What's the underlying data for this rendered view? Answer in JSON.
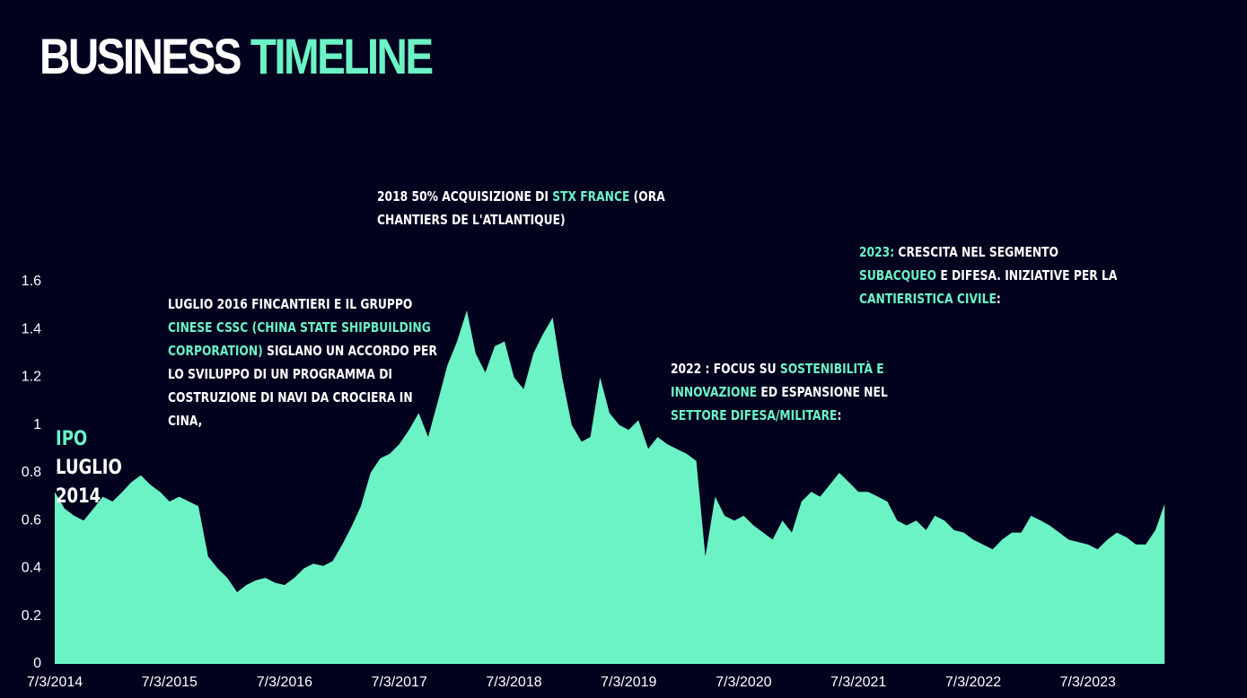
{
  "title": [
    {
      "text": "BUSINESS",
      "accent": false
    },
    {
      "text": "TIMELINE",
      "accent": true
    }
  ],
  "annotations": [
    [
      {
        "text": "IPO",
        "accent": true
      },
      {
        "text": " LUGLIO 2014",
        "accent": false
      }
    ],
    [
      {
        "text": "LUGLIO 2016 FINCANTIERI E IL GRUPPO ",
        "accent": false
      },
      {
        "text": "CINESE CSSC (CHINA STATE SHIPBUILDING CORPORATION)",
        "accent": true
      },
      {
        "text": " SIGLANO UN ACCORDO PER LO SVILUPPO DI UN PROGRAMMA DI COSTRUZIONE DI NAVI DA CROCIERA IN CINA,",
        "accent": false
      }
    ],
    [
      {
        "text": "2018 50% ACQUISIZIONE DI ",
        "accent": false
      },
      {
        "text": "STX FRANCE",
        "accent": true
      },
      {
        "text": " (ORA CHANTIERS DE L'ATLANTIQUE)",
        "accent": false
      }
    ],
    [
      {
        "text": "2022 : FOCUS SU ",
        "accent": false
      },
      {
        "text": "SOSTENIBILITÀ E INNOVAZIONE",
        "accent": true
      },
      {
        "text": " ED ESPANSIONE NEL ",
        "accent": false
      },
      {
        "text": "SETTORE DIFESA/MILITARE",
        "accent": true
      },
      {
        "text": ":",
        "accent": false
      }
    ],
    [
      {
        "text": "2023:",
        "accent": true
      },
      {
        "text": " CRESCITA NEL SEGMENTO ",
        "accent": false
      },
      {
        "text": "SUBACQUEO",
        "accent": true
      },
      {
        "text": " E DIFESA. INIZIATIVE PER LA ",
        "accent": false
      },
      {
        "text": "CANTIERISTICA CIVILE",
        "accent": true
      },
      {
        "text": ":",
        "accent": false
      }
    ]
  ],
  "chart_data": {
    "type": "area",
    "color": "#6cf3c5",
    "x": [
      "2014-07-03",
      "2014-08-03",
      "2014-09-03",
      "2014-10-03",
      "2014-11-03",
      "2014-12-03",
      "2015-01-03",
      "2015-02-03",
      "2015-03-03",
      "2015-04-03",
      "2015-05-03",
      "2015-06-03",
      "2015-07-03",
      "2015-08-03",
      "2015-09-03",
      "2015-10-03",
      "2015-11-03",
      "2015-12-03",
      "2016-01-03",
      "2016-02-03",
      "2016-03-03",
      "2016-04-03",
      "2016-05-03",
      "2016-06-03",
      "2016-07-03",
      "2016-08-03",
      "2016-09-03",
      "2016-10-03",
      "2016-11-03",
      "2016-12-03",
      "2017-01-03",
      "2017-02-03",
      "2017-03-03",
      "2017-04-03",
      "2017-05-03",
      "2017-06-03",
      "2017-07-03",
      "2017-08-03",
      "2017-09-03",
      "2017-10-03",
      "2017-11-03",
      "2017-12-03",
      "2018-01-03",
      "2018-02-03",
      "2018-03-03",
      "2018-04-03",
      "2018-05-03",
      "2018-06-03",
      "2018-07-03",
      "2018-08-03",
      "2018-09-03",
      "2018-10-03",
      "2018-11-03",
      "2018-12-03",
      "2019-01-03",
      "2019-02-03",
      "2019-03-03",
      "2019-04-03",
      "2019-05-03",
      "2019-06-03",
      "2019-07-03",
      "2019-08-03",
      "2019-09-03",
      "2019-10-03",
      "2019-11-03",
      "2019-12-03",
      "2020-01-03",
      "2020-02-03",
      "2020-03-03",
      "2020-04-03",
      "2020-05-03",
      "2020-06-03",
      "2020-07-03",
      "2020-08-03",
      "2020-09-03",
      "2020-10-03",
      "2020-11-03",
      "2020-12-03",
      "2021-01-03",
      "2021-02-03",
      "2021-03-03",
      "2021-04-03",
      "2021-05-03",
      "2021-06-03",
      "2021-07-03",
      "2021-08-03",
      "2021-09-03",
      "2021-10-03",
      "2021-11-03",
      "2021-12-03",
      "2022-01-03",
      "2022-02-03",
      "2022-03-03",
      "2022-04-03",
      "2022-05-03",
      "2022-06-03",
      "2022-07-03",
      "2022-08-03",
      "2022-09-03",
      "2022-10-03",
      "2022-11-03",
      "2022-12-03",
      "2023-01-03",
      "2023-02-03",
      "2023-03-03",
      "2023-04-03",
      "2023-05-03",
      "2023-06-03",
      "2023-07-03",
      "2023-08-03",
      "2023-09-03",
      "2023-10-03",
      "2023-11-03",
      "2023-12-03",
      "2024-01-03",
      "2024-02-03",
      "2024-03-03"
    ],
    "values": [
      0.72,
      0.65,
      0.62,
      0.6,
      0.65,
      0.7,
      0.68,
      0.72,
      0.76,
      0.79,
      0.75,
      0.72,
      0.68,
      0.7,
      0.68,
      0.66,
      0.45,
      0.4,
      0.36,
      0.3,
      0.33,
      0.35,
      0.36,
      0.34,
      0.33,
      0.36,
      0.4,
      0.42,
      0.41,
      0.43,
      0.5,
      0.58,
      0.66,
      0.8,
      0.86,
      0.88,
      0.92,
      0.98,
      1.05,
      0.95,
      1.1,
      1.25,
      1.35,
      1.48,
      1.3,
      1.22,
      1.33,
      1.35,
      1.2,
      1.15,
      1.3,
      1.38,
      1.45,
      1.2,
      1.0,
      0.93,
      0.95,
      1.2,
      1.05,
      1.0,
      0.98,
      1.02,
      0.9,
      0.95,
      0.92,
      0.9,
      0.88,
      0.85,
      0.45,
      0.7,
      0.62,
      0.6,
      0.62,
      0.58,
      0.55,
      0.52,
      0.6,
      0.55,
      0.68,
      0.72,
      0.7,
      0.75,
      0.8,
      0.76,
      0.72,
      0.72,
      0.7,
      0.68,
      0.6,
      0.58,
      0.6,
      0.56,
      0.62,
      0.6,
      0.56,
      0.55,
      0.52,
      0.5,
      0.48,
      0.52,
      0.55,
      0.55,
      0.62,
      0.6,
      0.58,
      0.55,
      0.52,
      0.51,
      0.5,
      0.48,
      0.52,
      0.55,
      0.53,
      0.5,
      0.5,
      0.56,
      0.67
    ],
    "xlim": [
      "2014-07-03",
      "2024-03-31"
    ],
    "xticks": [
      {
        "value": "2014-07-03",
        "label": "7/3/2014"
      },
      {
        "value": "2015-07-03",
        "label": "7/3/2015"
      },
      {
        "value": "2016-07-03",
        "label": "7/3/2016"
      },
      {
        "value": "2017-07-03",
        "label": "7/3/2017"
      },
      {
        "value": "2018-07-03",
        "label": "7/3/2018"
      },
      {
        "value": "2019-07-03",
        "label": "7/3/2019"
      },
      {
        "value": "2020-07-03",
        "label": "7/3/2020"
      },
      {
        "value": "2021-07-03",
        "label": "7/3/2021"
      },
      {
        "value": "2022-07-03",
        "label": "7/3/2022"
      },
      {
        "value": "2023-07-03",
        "label": "7/3/2023"
      }
    ],
    "ylim": [
      0,
      1.6
    ],
    "yticks": [
      0,
      0.2,
      0.4,
      0.6,
      0.8,
      1,
      1.2,
      1.4,
      1.6
    ]
  }
}
